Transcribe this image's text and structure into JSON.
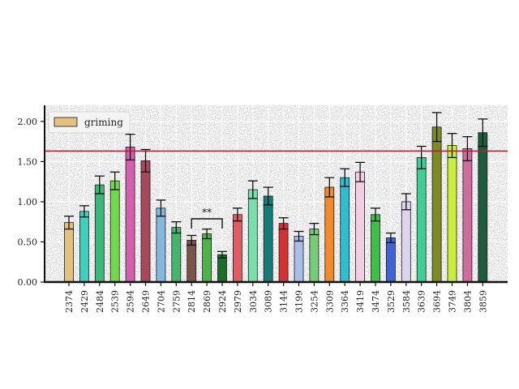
{
  "chart_data": {
    "type": "bar",
    "categories": [
      "2374",
      "2429",
      "2484",
      "2539",
      "2594",
      "2649",
      "2704",
      "2759",
      "2814",
      "2869",
      "2924",
      "2979",
      "3034",
      "3089",
      "3144",
      "3199",
      "3254",
      "3309",
      "3364",
      "3419",
      "3474",
      "3529",
      "3584",
      "3639",
      "3694",
      "3749",
      "3804",
      "3859"
    ],
    "series": [
      {
        "name": "griming",
        "values": [
          0.74,
          0.88,
          1.21,
          1.26,
          1.68,
          1.51,
          0.92,
          0.68,
          0.52,
          0.6,
          0.34,
          0.84,
          1.15,
          1.07,
          0.73,
          0.57,
          0.66,
          1.18,
          1.3,
          1.37,
          0.84,
          0.55,
          1.0,
          1.55,
          1.93,
          1.7,
          1.66,
          1.86
        ],
        "errors": [
          0.08,
          0.07,
          0.11,
          0.11,
          0.16,
          0.14,
          0.1,
          0.07,
          0.06,
          0.06,
          0.04,
          0.08,
          0.11,
          0.11,
          0.07,
          0.06,
          0.07,
          0.12,
          0.11,
          0.12,
          0.08,
          0.06,
          0.1,
          0.14,
          0.18,
          0.15,
          0.15,
          0.17
        ],
        "colors": [
          "#e3c17e",
          "#3fcfbf",
          "#3bb87a",
          "#74d84b",
          "#d45fae",
          "#a8485c",
          "#86b8df",
          "#47b46e",
          "#7a5449",
          "#4cb448",
          "#1d6d2a",
          "#de5e63",
          "#7bdfad",
          "#167c7a",
          "#d63030",
          "#a9bde8",
          "#74cc74",
          "#f28a2a",
          "#2fbdd0",
          "#f2cde4",
          "#3fbe49",
          "#3f62d4",
          "#ddd4ee",
          "#3fcf96",
          "#7e8a24",
          "#cbee3a",
          "#d06b9c",
          "#1b5d3c"
        ]
      }
    ],
    "reference_line": {
      "value": 1.63,
      "color": "#b22040"
    },
    "significance": {
      "from": "2814",
      "to": "2924",
      "label": "**"
    },
    "yticks": [
      "0.00",
      "0.50",
      "1.00",
      "1.50",
      "2.00"
    ],
    "ylim": [
      0,
      2.2
    ],
    "title": "",
    "xlabel": "",
    "ylabel": "",
    "legend": {
      "label": "griming",
      "color": "#e3c17e",
      "placement": "top-left"
    },
    "grid": true,
    "background": "#d3d3d6"
  }
}
